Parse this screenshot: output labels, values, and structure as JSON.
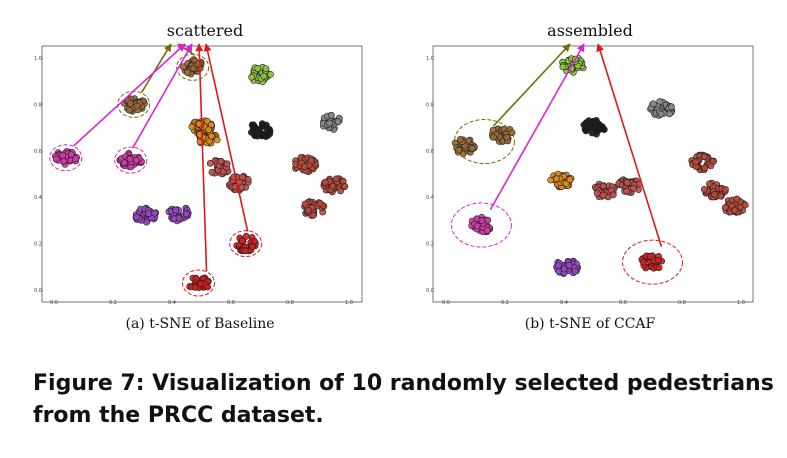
{
  "figure": {
    "caption_lines": [
      "Figure 7: Visualization of 10 randomly selected pedestrians",
      "from the PRCC dataset."
    ]
  },
  "colors": {
    "arrow_olive": "#7a6a00",
    "arrow_magenta": "#e020e0",
    "arrow_red": "#e01818",
    "axis": "#555555"
  },
  "chart_data": [
    {
      "type": "scatter",
      "title": "scattered",
      "subcaption": "(a) t-SNE of Baseline",
      "xlim": [
        0.0,
        1.0
      ],
      "ylim": [
        0.0,
        1.0
      ],
      "xticks": [
        "0.0",
        "0.2",
        "0.4",
        "0.6",
        "0.8",
        "1.0"
      ],
      "yticks": [
        "0.0",
        "0.2",
        "0.4",
        "0.6",
        "0.8",
        "1.0"
      ],
      "grid": false,
      "clusters": [
        {
          "id": "olive",
          "color": "#9a6a3a",
          "points": [
            [
              0.27,
              0.8
            ],
            [
              0.47,
              0.96
            ]
          ]
        },
        {
          "id": "magenta",
          "color": "#d43aa8",
          "points": [
            [
              0.04,
              0.57
            ],
            [
              0.26,
              0.56
            ]
          ]
        },
        {
          "id": "purple",
          "color": "#9b45c6",
          "points": [
            [
              0.31,
              0.32
            ],
            [
              0.42,
              0.33
            ]
          ]
        },
        {
          "id": "red",
          "color": "#d11f1f",
          "points": [
            [
              0.49,
              0.03
            ],
            [
              0.65,
              0.2
            ]
          ]
        },
        {
          "id": "orange",
          "color": "#e08a1a",
          "points": [
            [
              0.5,
              0.7
            ],
            [
              0.52,
              0.66
            ]
          ]
        },
        {
          "id": "brown-red-1",
          "color": "#c0504d",
          "points": [
            [
              0.56,
              0.53
            ],
            [
              0.63,
              0.46
            ]
          ]
        },
        {
          "id": "green",
          "color": "#8cc63f",
          "points": [
            [
              0.7,
              0.93
            ]
          ]
        },
        {
          "id": "black",
          "color": "#1a1a1a",
          "points": [
            [
              0.7,
              0.69
            ]
          ]
        },
        {
          "id": "gray",
          "color": "#8a8a8a",
          "points": [
            [
              0.94,
              0.72
            ]
          ]
        },
        {
          "id": "brown-red-2",
          "color": "#b84a3a",
          "points": [
            [
              0.85,
              0.54
            ],
            [
              0.95,
              0.45
            ],
            [
              0.88,
              0.35
            ]
          ]
        }
      ],
      "highlights": [
        {
          "cluster": "olive",
          "centers": [
            [
              0.27,
              0.8
            ],
            [
              0.47,
              0.96
            ]
          ]
        },
        {
          "cluster": "magenta",
          "centers": [
            [
              0.04,
              0.57
            ],
            [
              0.26,
              0.56
            ]
          ]
        },
        {
          "cluster": "red",
          "centers": [
            [
              0.49,
              0.03
            ],
            [
              0.65,
              0.2
            ]
          ]
        }
      ]
    },
    {
      "type": "scatter",
      "title": "assembled",
      "subcaption": "(b) t-SNE of CCAF",
      "xlim": [
        0.0,
        1.0
      ],
      "ylim": [
        0.0,
        1.0
      ],
      "xticks": [
        "0.0",
        "0.2",
        "0.4",
        "0.6",
        "0.8",
        "1.0"
      ],
      "yticks": [
        "0.0",
        "0.2",
        "0.4",
        "0.6",
        "0.8",
        "1.0"
      ],
      "grid": false,
      "clusters": [
        {
          "id": "green",
          "color": "#8cc63f",
          "points": [
            [
              0.43,
              0.97
            ]
          ]
        },
        {
          "id": "olive",
          "color": "#9a6a3a",
          "points": [
            [
              0.06,
              0.62
            ],
            [
              0.19,
              0.67
            ]
          ]
        },
        {
          "id": "black",
          "color": "#1a1a1a",
          "points": [
            [
              0.5,
              0.7
            ]
          ]
        },
        {
          "id": "gray",
          "color": "#8a8a8a",
          "points": [
            [
              0.73,
              0.78
            ]
          ]
        },
        {
          "id": "orange",
          "color": "#e08a1a",
          "points": [
            [
              0.39,
              0.47
            ]
          ]
        },
        {
          "id": "brown-red-1",
          "color": "#c0504d",
          "points": [
            [
              0.54,
              0.43
            ],
            [
              0.62,
              0.45
            ]
          ]
        },
        {
          "id": "brown-red-2",
          "color": "#b84a3a",
          "points": [
            [
              0.87,
              0.55
            ],
            [
              0.91,
              0.43
            ],
            [
              0.98,
              0.36
            ]
          ]
        },
        {
          "id": "magenta",
          "color": "#d43aa8",
          "points": [
            [
              0.12,
              0.28
            ]
          ]
        },
        {
          "id": "purple",
          "color": "#9b45c6",
          "points": [
            [
              0.41,
              0.1
            ]
          ]
        },
        {
          "id": "red",
          "color": "#d11f1f",
          "points": [
            [
              0.7,
              0.12
            ]
          ]
        }
      ],
      "highlights": [
        {
          "cluster": "olive",
          "centers": [
            [
              0.13,
              0.64
            ]
          ]
        },
        {
          "cluster": "magenta",
          "centers": [
            [
              0.12,
              0.28
            ]
          ]
        },
        {
          "cluster": "red",
          "centers": [
            [
              0.7,
              0.12
            ]
          ]
        }
      ]
    }
  ]
}
